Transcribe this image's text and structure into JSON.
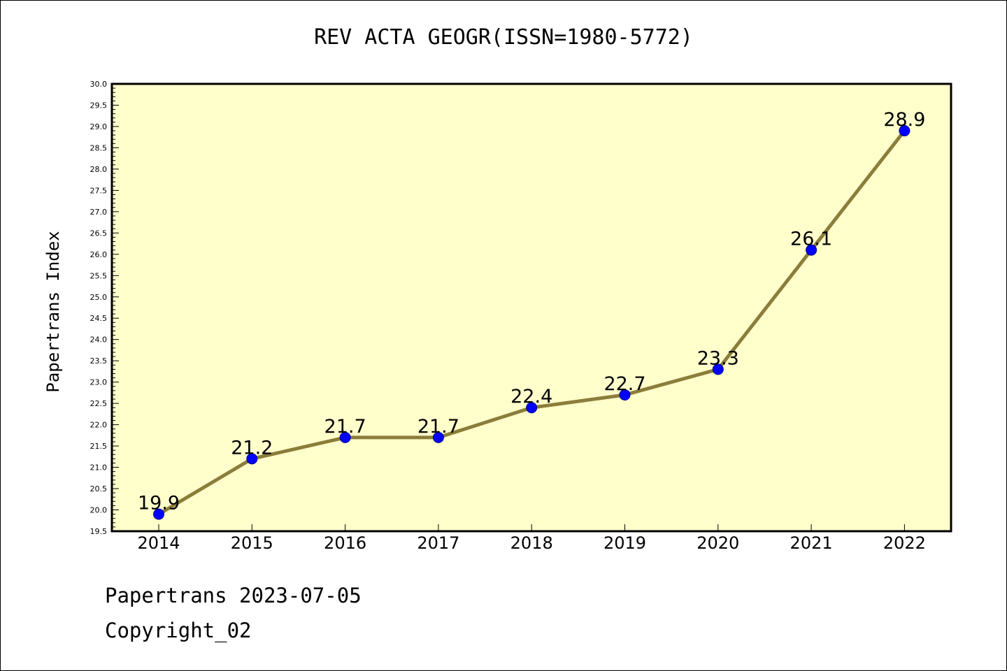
{
  "title": "REV ACTA GEOGR(ISSN=1980-5772)",
  "footer": {
    "line1": "Papertrans 2023-07-05",
    "line2": "Copyright_02"
  },
  "colors": {
    "plot_background": "#ffffcc",
    "line": "#8b7d3a",
    "marker": "#0000ff"
  },
  "chart_data": {
    "type": "line",
    "ylabel": "Papertrans Index",
    "xlabel": "",
    "ylim": [
      19.5,
      30.0
    ],
    "ytick_step": 0.5,
    "ytick_labels": [
      "19.5",
      "20.0",
      "20.5",
      "21.0",
      "21.5",
      "22.0",
      "22.5",
      "23.0",
      "23.5",
      "24.0",
      "24.5",
      "25.0",
      "25.5",
      "26.0",
      "26.5",
      "27.0",
      "27.5",
      "28.0",
      "28.5",
      "29.0",
      "29.5",
      "30.0"
    ],
    "categories": [
      "2014",
      "2015",
      "2016",
      "2017",
      "2018",
      "2019",
      "2020",
      "2021",
      "2022"
    ],
    "values": [
      19.9,
      21.2,
      21.7,
      21.7,
      22.4,
      22.7,
      23.3,
      26.1,
      28.9
    ],
    "data_labels": [
      "19.9",
      "21.2",
      "21.7",
      "21.7",
      "22.4",
      "22.7",
      "23.3",
      "26.1",
      "28.9"
    ],
    "grid": false,
    "legend": "none"
  }
}
